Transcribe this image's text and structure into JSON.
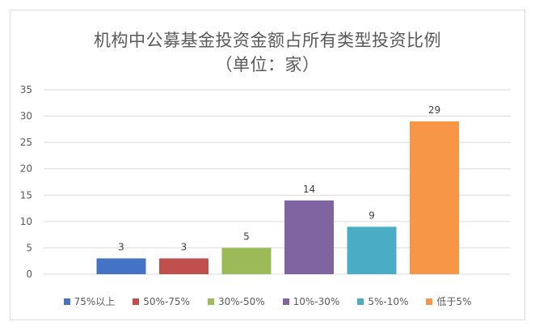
{
  "chart_data": {
    "type": "bar",
    "title": "机构中公募基金投资金额占所有类型投资比例",
    "subtitle": "（单位：家）",
    "categories": [
      "75%以上",
      "50%-75%",
      "30%-50%",
      "10%-30%",
      "5%-10%",
      "低于5%"
    ],
    "values": [
      3,
      3,
      5,
      14,
      9,
      29
    ],
    "colors": [
      "#4472c4",
      "#c0504d",
      "#9bbb59",
      "#8064a2",
      "#4bacc6",
      "#f79646"
    ],
    "ylim": [
      0,
      35
    ],
    "yticks": [
      0,
      5,
      10,
      15,
      20,
      25,
      30,
      35
    ],
    "grid": true,
    "legend_position": "bottom",
    "xlabel": "",
    "ylabel": ""
  }
}
